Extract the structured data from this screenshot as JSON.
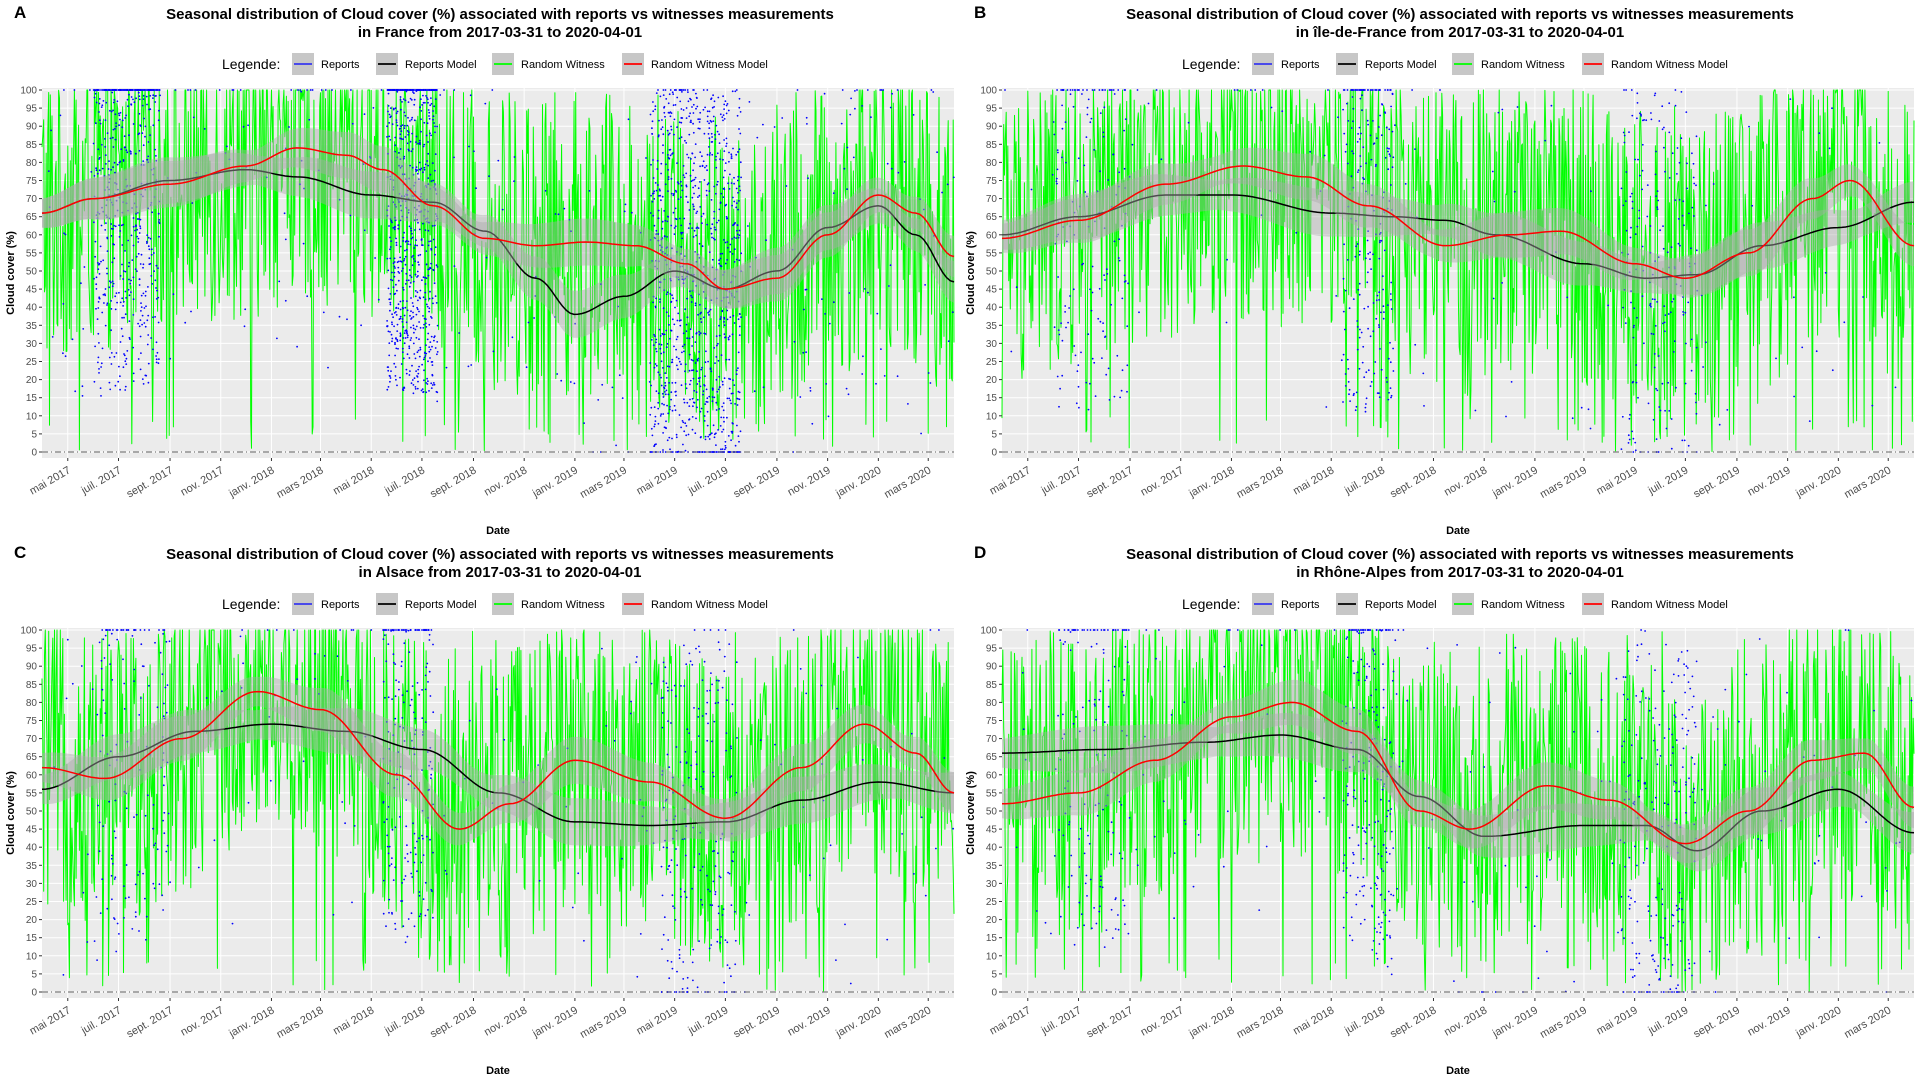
{
  "legend_label": "Legende:",
  "legend_entries": [
    {
      "name": "Reports",
      "color": "#0000ff",
      "kind": "points"
    },
    {
      "name": "Reports Model",
      "color": "#000000",
      "kind": "line"
    },
    {
      "name": "Random Witness",
      "color": "#00ff00",
      "kind": "line"
    },
    {
      "name": "Random Witness Model",
      "color": "#ff0000",
      "kind": "line"
    }
  ],
  "colors": {
    "panel_bg": "#ebebeb",
    "grid": "#ffffff",
    "ribbon": "#aaaaaa",
    "zero_line": "#666666"
  },
  "chart_data": [
    {
      "panel": "A",
      "type": "line",
      "title": "Seasonal distribution of  Cloud cover (%)  associated with reports vs witnesses measurements",
      "subtitle": "in  France  from 2017-03-31 to 2020-04-01",
      "xlabel": "Date",
      "ylabel": "Cloud cover (%)",
      "xlim": [
        "2017-03-31",
        "2020-04-01"
      ],
      "ylim": [
        0,
        100
      ],
      "yticks": [
        0,
        5,
        10,
        15,
        20,
        25,
        30,
        35,
        40,
        45,
        50,
        55,
        60,
        65,
        70,
        75,
        80,
        85,
        90,
        95,
        100
      ],
      "xticks": [
        "2017-05-01",
        "2017-07-01",
        "2017-09-01",
        "2017-11-01",
        "2018-01-01",
        "2018-03-01",
        "2018-05-01",
        "2018-07-01",
        "2018-09-01",
        "2018-11-01",
        "2019-01-01",
        "2019-03-01",
        "2019-05-01",
        "2019-07-01",
        "2019-09-01",
        "2019-11-01",
        "2020-01-01",
        "2020-03-01"
      ],
      "xticklabels": [
        "mai 2017",
        "juil. 2017",
        "sept. 2017",
        "nov. 2017",
        "janv. 2018",
        "mars 2018",
        "mai 2018",
        "juil. 2018",
        "sept. 2018",
        "nov. 2018",
        "janv. 2019",
        "mars 2019",
        "mai 2019",
        "juil. 2019",
        "sept. 2019",
        "nov. 2019",
        "janv. 2020",
        "mars 2020"
      ],
      "grid": true,
      "legend_position": "top",
      "series": [
        {
          "name": "Reports Model",
          "type": "line",
          "x": [
            "2017-03-31",
            "2017-06-01",
            "2017-09-01",
            "2017-12-01",
            "2018-02-01",
            "2018-05-01",
            "2018-07-15",
            "2018-09-15",
            "2018-11-15",
            "2019-01-01",
            "2019-03-01",
            "2019-05-01",
            "2019-07-01",
            "2019-09-01",
            "2019-11-01",
            "2020-01-01",
            "2020-02-15",
            "2020-04-01"
          ],
          "y": [
            66,
            70,
            75,
            78,
            76,
            71,
            69,
            61,
            48,
            38,
            43,
            50,
            45,
            50,
            62,
            68,
            60,
            47
          ]
        },
        {
          "name": "Random Witness Model",
          "type": "line",
          "x": [
            "2017-03-31",
            "2017-06-01",
            "2017-09-01",
            "2017-12-01",
            "2018-02-01",
            "2018-04-01",
            "2018-05-15",
            "2018-07-15",
            "2018-09-15",
            "2018-11-15",
            "2019-01-15",
            "2019-03-15",
            "2019-05-15",
            "2019-07-01",
            "2019-09-01",
            "2019-11-01",
            "2020-01-01",
            "2020-02-15",
            "2020-04-01"
          ],
          "y": [
            66,
            70,
            74,
            79,
            84,
            82,
            78,
            68,
            59,
            57,
            58,
            57,
            52,
            45,
            48,
            60,
            71,
            66,
            54
          ]
        }
      ]
    },
    {
      "panel": "B",
      "type": "line",
      "title": "Seasonal distribution of  Cloud cover (%)  associated with reports vs witnesses measurements",
      "subtitle": "in  île-de-France  from 2017-03-31 to 2020-04-01",
      "xlabel": "Date",
      "ylabel": "Cloud cover (%)",
      "xlim": [
        "2017-03-31",
        "2020-04-01"
      ],
      "ylim": [
        0,
        100
      ],
      "yticks": [
        0,
        5,
        10,
        15,
        20,
        25,
        30,
        35,
        40,
        45,
        50,
        55,
        60,
        65,
        70,
        75,
        80,
        85,
        90,
        95,
        100
      ],
      "xticks": [
        "2017-05-01",
        "2017-07-01",
        "2017-09-01",
        "2017-11-01",
        "2018-01-01",
        "2018-03-01",
        "2018-05-01",
        "2018-07-01",
        "2018-09-01",
        "2018-11-01",
        "2019-01-01",
        "2019-03-01",
        "2019-05-01",
        "2019-07-01",
        "2019-09-01",
        "2019-11-01",
        "2020-01-01",
        "2020-03-01"
      ],
      "xticklabels": [
        "mai 2017",
        "juil. 2017",
        "sept. 2017",
        "nov. 2017",
        "janv. 2018",
        "mars 2018",
        "mai 2018",
        "juil. 2018",
        "sept. 2018",
        "nov. 2018",
        "janv. 2019",
        "mars 2019",
        "mai 2019",
        "juil. 2019",
        "sept. 2019",
        "nov. 2019",
        "janv. 2020",
        "mars 2020"
      ],
      "grid": true,
      "legend_position": "top",
      "series": [
        {
          "name": "Reports Model",
          "type": "line",
          "x": [
            "2017-03-31",
            "2017-07-01",
            "2017-10-15",
            "2018-01-01",
            "2018-05-01",
            "2018-07-15",
            "2018-09-15",
            "2018-11-15",
            "2019-03-01",
            "2019-05-15",
            "2019-07-15",
            "2019-10-01",
            "2020-01-01",
            "2020-04-01"
          ],
          "y": [
            60,
            65,
            71,
            71,
            66,
            65,
            64,
            60,
            52,
            48,
            49,
            57,
            62,
            69
          ]
        },
        {
          "name": "Random Witness Model",
          "type": "line",
          "x": [
            "2017-03-31",
            "2017-07-01",
            "2017-10-15",
            "2018-01-15",
            "2018-04-01",
            "2018-06-15",
            "2018-09-15",
            "2018-12-01",
            "2019-02-01",
            "2019-05-01",
            "2019-07-01",
            "2019-09-15",
            "2019-12-01",
            "2020-01-15",
            "2020-04-01"
          ],
          "y": [
            59,
            64,
            74,
            79,
            76,
            68,
            57,
            60,
            61,
            52,
            48,
            55,
            70,
            75,
            57
          ]
        }
      ]
    },
    {
      "panel": "C",
      "type": "line",
      "title": "Seasonal distribution of  Cloud cover (%)  associated with reports vs witnesses measurements",
      "subtitle": "in  Alsace  from 2017-03-31 to 2020-04-01",
      "xlabel": "Date",
      "ylabel": "Cloud cover (%)",
      "xlim": [
        "2017-03-31",
        "2020-04-01"
      ],
      "ylim": [
        0,
        100
      ],
      "yticks": [
        0,
        5,
        10,
        15,
        20,
        25,
        30,
        35,
        40,
        45,
        50,
        55,
        60,
        65,
        70,
        75,
        80,
        85,
        90,
        95,
        100
      ],
      "xticks": [
        "2017-05-01",
        "2017-07-01",
        "2017-09-01",
        "2017-11-01",
        "2018-01-01",
        "2018-03-01",
        "2018-05-01",
        "2018-07-01",
        "2018-09-01",
        "2018-11-01",
        "2019-01-01",
        "2019-03-01",
        "2019-05-01",
        "2019-07-01",
        "2019-09-01",
        "2019-11-01",
        "2020-01-01",
        "2020-03-01"
      ],
      "xticklabels": [
        "mai 2017",
        "juil. 2017",
        "sept. 2017",
        "nov. 2017",
        "janv. 2018",
        "mars 2018",
        "mai 2018",
        "juil. 2018",
        "sept. 2018",
        "nov. 2018",
        "janv. 2019",
        "mars 2019",
        "mai 2019",
        "juil. 2019",
        "sept. 2019",
        "nov. 2019",
        "janv. 2020",
        "mars 2020"
      ],
      "grid": true,
      "legend_position": "top",
      "series": [
        {
          "name": "Reports Model",
          "type": "line",
          "x": [
            "2017-03-31",
            "2017-07-01",
            "2017-10-01",
            "2018-01-01",
            "2018-04-01",
            "2018-07-01",
            "2018-10-01",
            "2019-01-01",
            "2019-04-01",
            "2019-07-01",
            "2019-10-01",
            "2020-01-01",
            "2020-04-01"
          ],
          "y": [
            56,
            65,
            72,
            74,
            72,
            67,
            55,
            47,
            46,
            47,
            53,
            58,
            55
          ]
        },
        {
          "name": "Random Witness Model",
          "type": "line",
          "x": [
            "2017-03-31",
            "2017-06-15",
            "2017-09-15",
            "2017-12-15",
            "2018-03-01",
            "2018-06-01",
            "2018-08-15",
            "2018-10-15",
            "2019-01-01",
            "2019-04-01",
            "2019-07-01",
            "2019-10-01",
            "2019-12-15",
            "2020-02-15",
            "2020-04-01"
          ],
          "y": [
            62,
            59,
            70,
            83,
            78,
            60,
            45,
            52,
            64,
            58,
            48,
            62,
            74,
            66,
            55
          ]
        }
      ]
    },
    {
      "panel": "D",
      "type": "line",
      "title": "Seasonal distribution of  Cloud cover (%)  associated with reports vs witnesses measurements",
      "subtitle": "in  Rhône-Alpes  from 2017-03-31 to 2020-04-01",
      "xlabel": "Date",
      "ylabel": "Cloud cover (%)",
      "xlim": [
        "2017-03-31",
        "2020-04-01"
      ],
      "ylim": [
        0,
        100
      ],
      "yticks": [
        0,
        5,
        10,
        15,
        20,
        25,
        30,
        35,
        40,
        45,
        50,
        55,
        60,
        65,
        70,
        75,
        80,
        85,
        90,
        95,
        100
      ],
      "xticks": [
        "2017-05-01",
        "2017-07-01",
        "2017-09-01",
        "2017-11-01",
        "2018-01-01",
        "2018-03-01",
        "2018-05-01",
        "2018-07-01",
        "2018-09-01",
        "2018-11-01",
        "2019-01-01",
        "2019-03-01",
        "2019-05-01",
        "2019-07-01",
        "2019-09-01",
        "2019-11-01",
        "2020-01-01",
        "2020-03-01"
      ],
      "xticklabels": [
        "mai 2017",
        "juil. 2017",
        "sept. 2017",
        "nov. 2017",
        "janv. 2018",
        "mars 2018",
        "mai 2018",
        "juil. 2018",
        "sept. 2018",
        "nov. 2018",
        "janv. 2019",
        "mars 2019",
        "mai 2019",
        "juil. 2019",
        "sept. 2019",
        "nov. 2019",
        "janv. 2020",
        "mars 2020"
      ],
      "grid": true,
      "legend_position": "top",
      "series": [
        {
          "name": "Reports Model",
          "type": "line",
          "x": [
            "2017-03-31",
            "2017-08-01",
            "2017-12-01",
            "2018-03-01",
            "2018-06-01",
            "2018-08-15",
            "2018-11-01",
            "2019-03-01",
            "2019-05-15",
            "2019-07-15",
            "2019-10-01",
            "2020-01-01",
            "2020-04-01"
          ],
          "y": [
            66,
            67,
            69,
            71,
            67,
            54,
            43,
            46,
            46,
            39,
            50,
            56,
            44
          ]
        },
        {
          "name": "Random Witness Model",
          "type": "line",
          "x": [
            "2017-03-31",
            "2017-07-01",
            "2017-10-01",
            "2018-01-01",
            "2018-03-15",
            "2018-06-01",
            "2018-08-15",
            "2018-10-15",
            "2019-01-15",
            "2019-04-01",
            "2019-07-01",
            "2019-09-15",
            "2019-12-01",
            "2020-02-01",
            "2020-04-01"
          ],
          "y": [
            52,
            55,
            64,
            76,
            80,
            72,
            50,
            45,
            57,
            53,
            41,
            50,
            64,
            66,
            51
          ]
        }
      ]
    }
  ]
}
